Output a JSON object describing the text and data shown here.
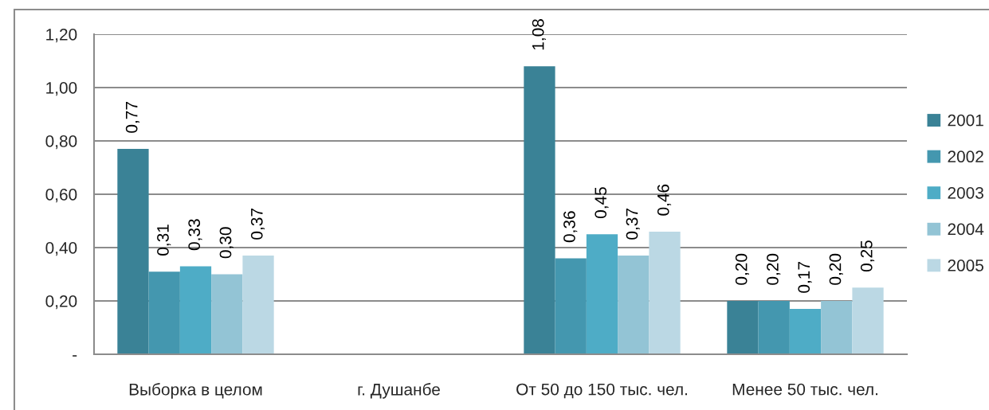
{
  "chart_data": {
    "type": "bar",
    "categories": [
      "Выборка в целом",
      "г. Душанбе",
      "От 50 до 150 тыс. чел.",
      "Менее 50 тыс. чел."
    ],
    "series": [
      {
        "name": "2001",
        "color": "#3a8296",
        "values": [
          0.77,
          null,
          1.08,
          0.2
        ],
        "value_labels": [
          "0,77",
          null,
          "1,08",
          "0,20"
        ]
      },
      {
        "name": "2002",
        "color": "#4497af",
        "values": [
          0.31,
          null,
          0.36,
          0.2
        ],
        "value_labels": [
          "0,31",
          null,
          "0,36",
          "0,20"
        ]
      },
      {
        "name": "2003",
        "color": "#4eacc6",
        "values": [
          0.33,
          null,
          0.45,
          0.17
        ],
        "value_labels": [
          "0,33",
          null,
          "0,45",
          "0,17"
        ]
      },
      {
        "name": "2004",
        "color": "#93c4d5",
        "values": [
          0.3,
          null,
          0.37,
          0.2
        ],
        "value_labels": [
          "0,30",
          null,
          "0,37",
          "0,20"
        ]
      },
      {
        "name": "2005",
        "color": "#bbd8e4",
        "values": [
          0.37,
          null,
          0.46,
          0.25
        ],
        "value_labels": [
          "0,37",
          null,
          "0,46",
          "0,25"
        ]
      }
    ],
    "ylim": [
      0,
      1.2
    ],
    "yticks": [
      {
        "value": 0,
        "label": "-"
      },
      {
        "value": 0.2,
        "label": "0,20"
      },
      {
        "value": 0.4,
        "label": "0,40"
      },
      {
        "value": 0.6,
        "label": "0,60"
      },
      {
        "value": 0.8,
        "label": "0,80"
      },
      {
        "value": 1.0,
        "label": "1,00"
      },
      {
        "value": 1.2,
        "label": "1,20"
      }
    ],
    "grid": "y",
    "legend": "right"
  }
}
